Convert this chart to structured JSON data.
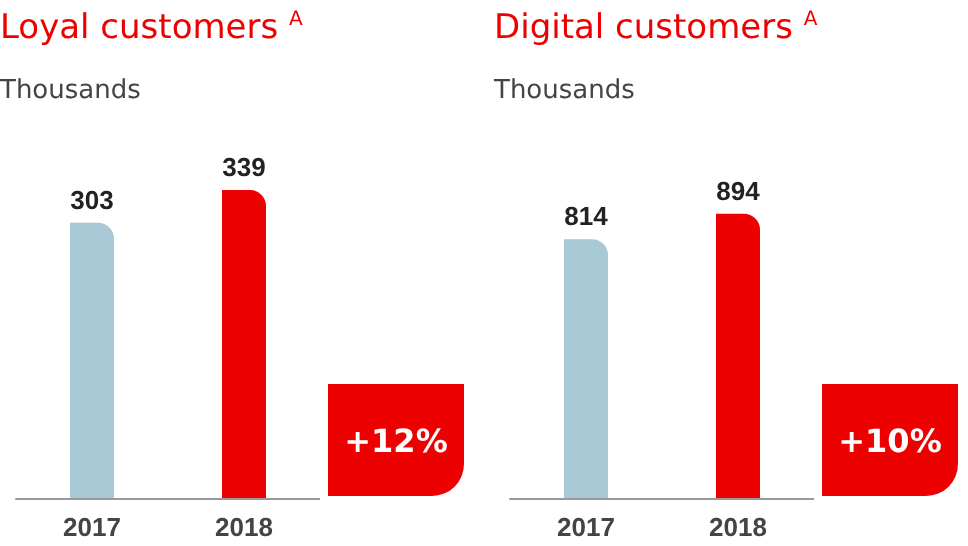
{
  "chart_data": [
    {
      "type": "bar",
      "title": "Loyal customers $^{A}$",
      "subtitle": "Thousands",
      "categories": [
        "2017",
        "2018"
      ],
      "values": [
        303,
        339
      ],
      "colors": [
        "#a8c8d6",
        "#ec0000"
      ],
      "data_labels": true,
      "tick_labels": "x",
      "annotations": [
        "+12%"
      ]
    },
    {
      "type": "bar",
      "title": "Digital customers $^{A}$",
      "subtitle": "Thousands",
      "categories": [
        "2017",
        "2018"
      ],
      "values": [
        814,
        894
      ],
      "colors": [
        "#a8c8d6",
        "#ec0000"
      ],
      "data_labels": true,
      "tick_labels": "x",
      "annotations": [
        "+10%"
      ]
    }
  ]
}
